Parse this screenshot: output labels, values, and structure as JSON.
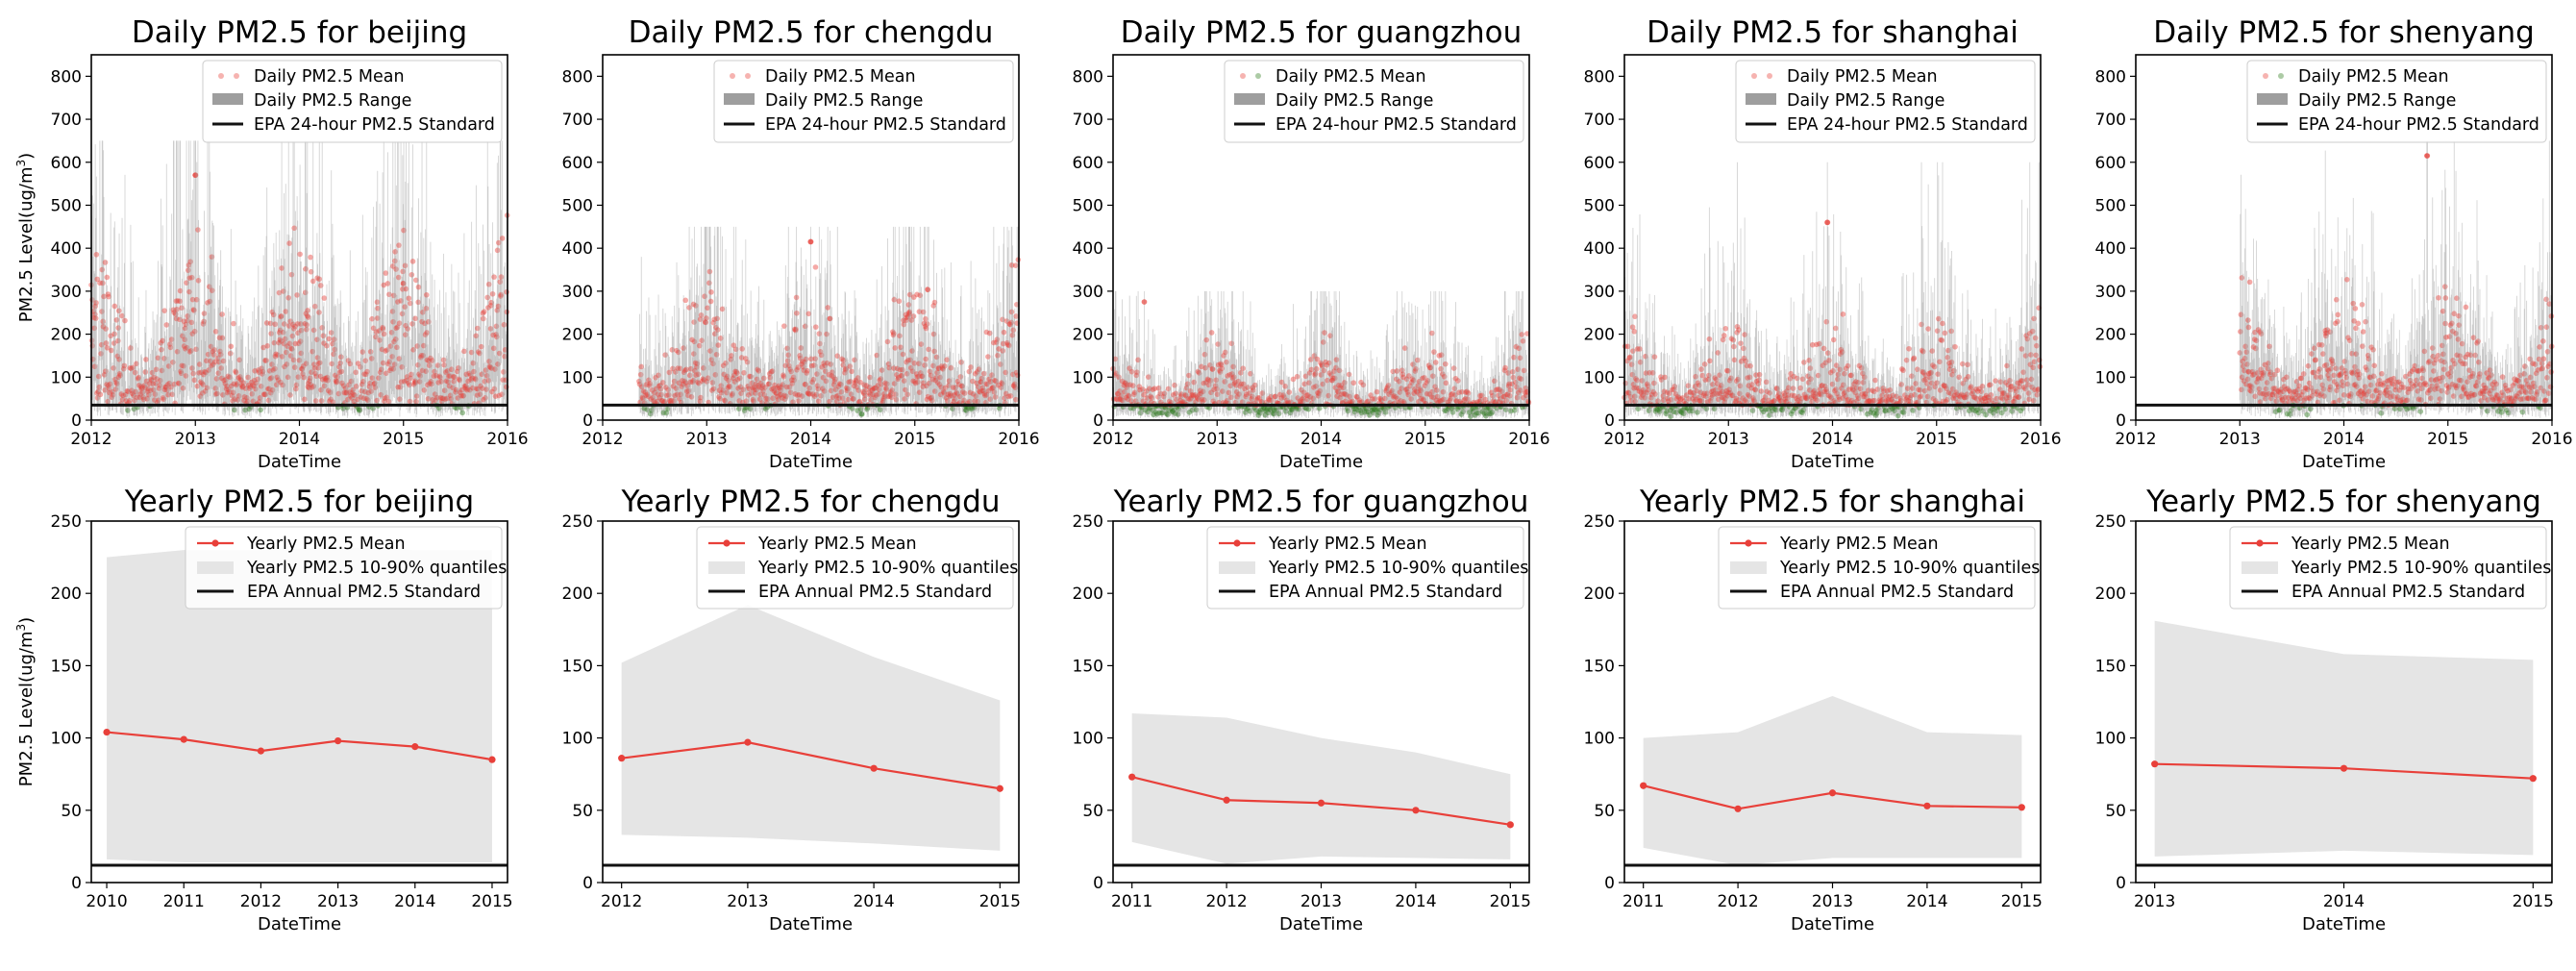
{
  "chart_data": [
    {
      "type": "scatter",
      "title": "Daily PM2.5 for beijing",
      "xlabel": "DateTime",
      "ylabel": "PM2.5 Level(ug/m³)",
      "xlim": [
        2012,
        2016
      ],
      "ylim": [
        0,
        850
      ],
      "xticks": [
        "2012",
        "2013",
        "2014",
        "2015",
        "2016"
      ],
      "yticks": [
        0,
        100,
        200,
        300,
        400,
        500,
        600,
        700,
        800
      ],
      "legend": [
        "Daily PM2.5 Mean",
        "Daily PM2.5 Range",
        "EPA 24-hour PM2.5 Standard"
      ],
      "legend_position": "top-right",
      "start": 2012.0,
      "mean_base": 95,
      "mean_var": 70,
      "peak": 570,
      "peak_at": 2013.0,
      "range_top": 650,
      "standard": 35
    },
    {
      "type": "scatter",
      "title": "Daily PM2.5 for chengdu",
      "xlabel": "DateTime",
      "ylabel": "",
      "xlim": [
        2012,
        2016
      ],
      "ylim": [
        0,
        850
      ],
      "xticks": [
        "2012",
        "2013",
        "2014",
        "2015",
        "2016"
      ],
      "yticks": [
        0,
        100,
        200,
        300,
        400,
        500,
        600,
        700,
        800
      ],
      "legend": [
        "Daily PM2.5 Mean",
        "Daily PM2.5 Range",
        "EPA 24-hour PM2.5 Standard"
      ],
      "legend_position": "top-right",
      "start": 2012.35,
      "mean_base": 80,
      "mean_var": 55,
      "peak": 415,
      "peak_at": 2014.0,
      "range_top": 450,
      "standard": 35
    },
    {
      "type": "scatter",
      "title": "Daily PM2.5 for guangzhou",
      "xlabel": "DateTime",
      "ylabel": "",
      "xlim": [
        2012,
        2016
      ],
      "ylim": [
        0,
        850
      ],
      "xticks": [
        "2012",
        "2013",
        "2014",
        "2015",
        "2016"
      ],
      "yticks": [
        0,
        100,
        200,
        300,
        400,
        500,
        600,
        700,
        800
      ],
      "legend": [
        "Daily PM2.5 Mean",
        "Daily PM2.5 Range",
        "EPA 24-hour PM2.5 Standard"
      ],
      "legend_position": "top-right",
      "start": 2012.0,
      "mean_base": 50,
      "mean_var": 30,
      "peak": 275,
      "peak_at": 2012.3,
      "range_top": 300,
      "standard": 35
    },
    {
      "type": "scatter",
      "title": "Daily PM2.5 for shanghai",
      "xlabel": "DateTime",
      "ylabel": "",
      "xlim": [
        2012,
        2016
      ],
      "ylim": [
        0,
        850
      ],
      "xticks": [
        "2012",
        "2013",
        "2014",
        "2015",
        "2016"
      ],
      "yticks": [
        0,
        100,
        200,
        300,
        400,
        500,
        600,
        700,
        800
      ],
      "legend": [
        "Daily PM2.5 Mean",
        "Daily PM2.5 Range",
        "EPA 24-hour PM2.5 Standard"
      ],
      "legend_position": "top-right",
      "start": 2012.0,
      "mean_base": 55,
      "mean_var": 40,
      "peak": 460,
      "peak_at": 2013.95,
      "range_top": 600,
      "standard": 35
    },
    {
      "type": "scatter",
      "title": "Daily PM2.5 for shenyang",
      "xlabel": "DateTime",
      "ylabel": "",
      "xlim": [
        2012,
        2016
      ],
      "ylim": [
        0,
        850
      ],
      "xticks": [
        "2012",
        "2013",
        "2014",
        "2015",
        "2016"
      ],
      "yticks": [
        0,
        100,
        200,
        300,
        400,
        500,
        600,
        700,
        800
      ],
      "legend": [
        "Daily PM2.5 Mean",
        "Daily PM2.5 Range",
        "EPA 24-hour PM2.5 Standard"
      ],
      "legend_position": "top-right",
      "start": 2013.0,
      "mean_base": 70,
      "mean_var": 55,
      "peak": 615,
      "peak_at": 2014.8,
      "range_top": 650,
      "standard": 35
    },
    {
      "type": "line",
      "title": "Yearly PM2.5 for beijing",
      "xlabel": "DateTime",
      "ylabel": "PM2.5 Level(ug/m³)",
      "x": [
        2010,
        2011,
        2012,
        2013,
        2014,
        2015
      ],
      "y": [
        104,
        99,
        91,
        98,
        94,
        85
      ],
      "q10": [
        16,
        14,
        14,
        14,
        14,
        14
      ],
      "q90": [
        225,
        230,
        230,
        232,
        230,
        230
      ],
      "xlim": [
        2009.8,
        2015.2
      ],
      "ylim": [
        0,
        250
      ],
      "yticks": [
        0,
        50,
        100,
        150,
        200,
        250
      ],
      "legend": [
        "Yearly PM2.5 Mean",
        "Yearly PM2.5 10-90% quantiles",
        "EPA Annual PM2.5 Standard"
      ],
      "legend_position": "top-right",
      "standard": 12
    },
    {
      "type": "line",
      "title": "Yearly PM2.5 for chengdu",
      "xlabel": "DateTime",
      "ylabel": "",
      "x": [
        2012,
        2013,
        2014,
        2015
      ],
      "y": [
        86,
        97,
        79,
        65
      ],
      "q10": [
        33,
        31,
        27,
        22
      ],
      "q90": [
        152,
        192,
        156,
        126
      ],
      "xlim": [
        2011.85,
        2015.15
      ],
      "ylim": [
        0,
        250
      ],
      "yticks": [
        0,
        50,
        100,
        150,
        200,
        250
      ],
      "legend": [
        "Yearly PM2.5 Mean",
        "Yearly PM2.5 10-90% quantiles",
        "EPA Annual PM2.5 Standard"
      ],
      "legend_position": "top-right",
      "standard": 12
    },
    {
      "type": "line",
      "title": "Yearly PM2.5 for guangzhou",
      "xlabel": "DateTime",
      "ylabel": "",
      "x": [
        2011,
        2012,
        2013,
        2014,
        2015
      ],
      "y": [
        73,
        57,
        55,
        50,
        40
      ],
      "q10": [
        28,
        13,
        18,
        17,
        16
      ],
      "q90": [
        117,
        114,
        100,
        90,
        75
      ],
      "xlim": [
        2010.8,
        2015.2
      ],
      "ylim": [
        0,
        250
      ],
      "yticks": [
        0,
        50,
        100,
        150,
        200,
        250
      ],
      "legend": [
        "Yearly PM2.5 Mean",
        "Yearly PM2.5 10-90% quantiles",
        "EPA Annual PM2.5 Standard"
      ],
      "legend_position": "top-right",
      "standard": 12
    },
    {
      "type": "line",
      "title": "Yearly PM2.5 for shanghai",
      "xlabel": "DateTime",
      "ylabel": "",
      "x": [
        2011,
        2012,
        2013,
        2014,
        2015
      ],
      "y": [
        67,
        51,
        62,
        53,
        52
      ],
      "q10": [
        24,
        12,
        17,
        17,
        17
      ],
      "q90": [
        100,
        104,
        129,
        104,
        102
      ],
      "xlim": [
        2010.8,
        2015.2
      ],
      "ylim": [
        0,
        250
      ],
      "yticks": [
        0,
        50,
        100,
        150,
        200,
        250
      ],
      "legend": [
        "Yearly PM2.5 Mean",
        "Yearly PM2.5 10-90% quantiles",
        "EPA Annual PM2.5 Standard"
      ],
      "legend_position": "top-right",
      "standard": 12
    },
    {
      "type": "line",
      "title": "Yearly PM2.5 for shenyang",
      "xlabel": "DateTime",
      "ylabel": "",
      "x": [
        2013,
        2014,
        2015
      ],
      "y": [
        82,
        79,
        72
      ],
      "q10": [
        18,
        22,
        19
      ],
      "q90": [
        181,
        158,
        154
      ],
      "xlim": [
        2012.9,
        2015.1
      ],
      "ylim": [
        0,
        250
      ],
      "yticks": [
        0,
        50,
        100,
        150,
        200,
        250
      ],
      "legend": [
        "Yearly PM2.5 Mean",
        "Yearly PM2.5 10-90% quantiles",
        "EPA Annual PM2.5 Standard"
      ],
      "legend_position": "top-right",
      "standard": 12
    }
  ]
}
